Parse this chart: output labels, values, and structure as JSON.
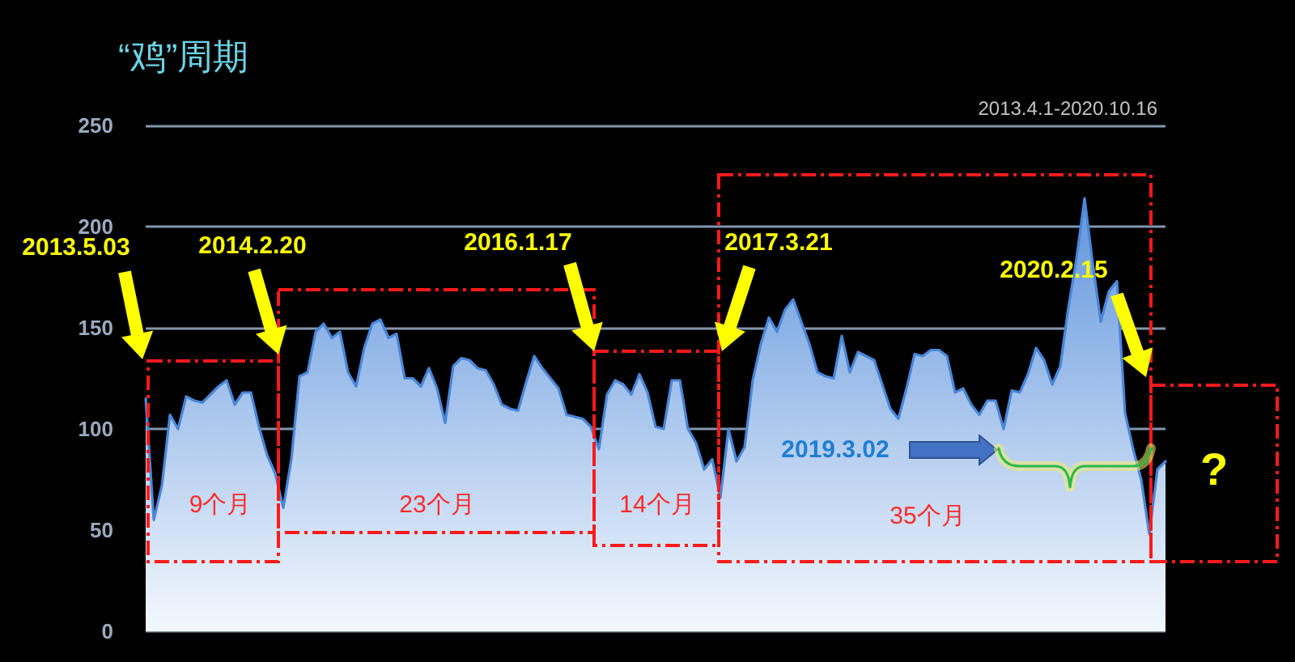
{
  "chart_data": {
    "type": "area",
    "title": "“鸡”周期",
    "subtitle": "2013.4.1-2020.10.16",
    "categories": [
      null,
      null,
      null,
      null,
      null,
      null,
      null,
      null,
      null,
      null,
      null,
      null,
      null,
      null,
      null,
      null,
      null,
      null,
      null,
      null,
      null,
      null,
      null,
      null,
      null,
      null,
      null,
      null,
      null,
      null,
      null,
      null,
      null,
      null,
      null,
      null,
      null,
      null,
      null,
      null,
      null,
      null,
      null,
      null,
      null,
      null,
      null,
      null,
      null,
      null,
      null,
      null,
      null,
      null,
      null,
      null,
      null,
      null,
      null,
      null,
      null,
      null,
      null,
      null,
      null,
      null,
      null,
      null,
      null,
      null,
      null,
      null,
      null,
      null,
      null,
      null,
      null,
      null,
      null,
      null,
      null,
      null,
      null,
      null,
      null,
      null,
      null,
      null,
      null,
      null,
      null,
      null,
      null,
      null,
      null,
      null,
      null,
      null,
      null,
      null,
      null,
      null,
      null,
      null,
      null,
      null,
      null,
      null,
      null,
      null,
      null,
      null,
      null,
      null,
      null,
      null,
      null,
      null,
      null,
      null,
      null,
      null,
      null,
      null,
      null,
      null,
      null
    ],
    "values": [
      115,
      55,
      72,
      107,
      100,
      116,
      114,
      113,
      117,
      121,
      124,
      112,
      118,
      118,
      101,
      87,
      78,
      61,
      85,
      126,
      128,
      148,
      152,
      145,
      148,
      128,
      121,
      140,
      152,
      154,
      145,
      147,
      125,
      125,
      121,
      130,
      120,
      103,
      131,
      135,
      134,
      130,
      129,
      122,
      112,
      110,
      109,
      123,
      136,
      130,
      125,
      120,
      107,
      106,
      105,
      101,
      90,
      117,
      124,
      122,
      117,
      127,
      118,
      101,
      100,
      124,
      124,
      100,
      93,
      80,
      85,
      66,
      100,
      84,
      91,
      124,
      142,
      155,
      148,
      159,
      164,
      153,
      142,
      128,
      126,
      125,
      146,
      128,
      138,
      136,
      134,
      122,
      110,
      105,
      120,
      137,
      136,
      139,
      139,
      136,
      118,
      120,
      112,
      107,
      114,
      114,
      100,
      119,
      118,
      127,
      140,
      134,
      122,
      131,
      160,
      184,
      214,
      182,
      153,
      168,
      173,
      108,
      90,
      75,
      48,
      80,
      84
    ],
    "color": "#4a86d8",
    "ylim": [
      0,
      250
    ],
    "yticks": [
      0,
      50,
      100,
      150,
      200,
      250
    ],
    "grid": "y",
    "tick_labels": "y",
    "annotations": [
      "2013.5.03",
      "2014.2.20",
      "2016.1.17",
      "2017.3.21",
      "2020.2.15",
      "2019.3.02",
      "9个月",
      "23个月",
      "14个月",
      "35个月",
      "?"
    ]
  }
}
